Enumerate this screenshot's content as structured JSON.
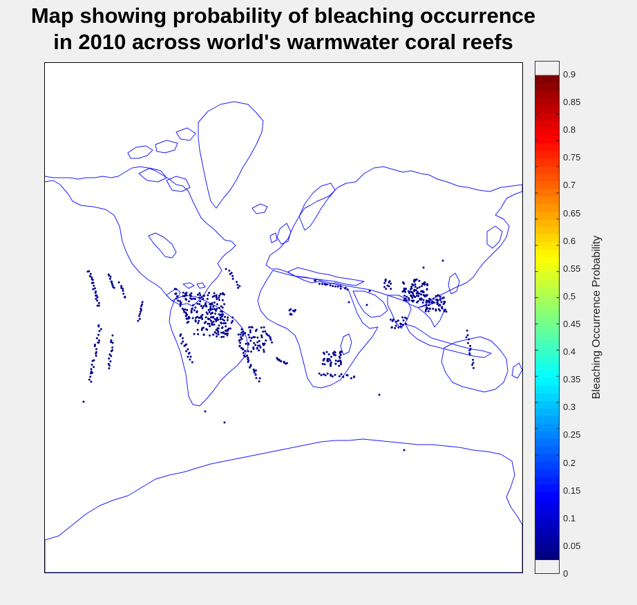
{
  "title": {
    "line1": "Map showing probability of bleaching occurrence",
    "line2": "in 2010 across world's warmwater coral reefs"
  },
  "colorbar": {
    "label": "Bleaching Occurrence Probability",
    "colormap": "jet",
    "range": [
      0,
      0.925
    ],
    "ticks": [
      "0",
      "0.05",
      "0.1",
      "0.15",
      "0.2",
      "0.25",
      "0.3",
      "0.35",
      "0.4",
      "0.45",
      "0.5",
      "0.55",
      "0.6",
      "0.65",
      "0.7",
      "0.75",
      "0.8",
      "0.85",
      "0.9"
    ]
  },
  "colors": {
    "coastline": "#1a1aff",
    "reef_markers": "#00008f",
    "background": "#f0f0f0",
    "map_background": "#ffffff"
  },
  "map": {
    "projection": "mercator",
    "dominant_probability_shown": 0
  }
}
